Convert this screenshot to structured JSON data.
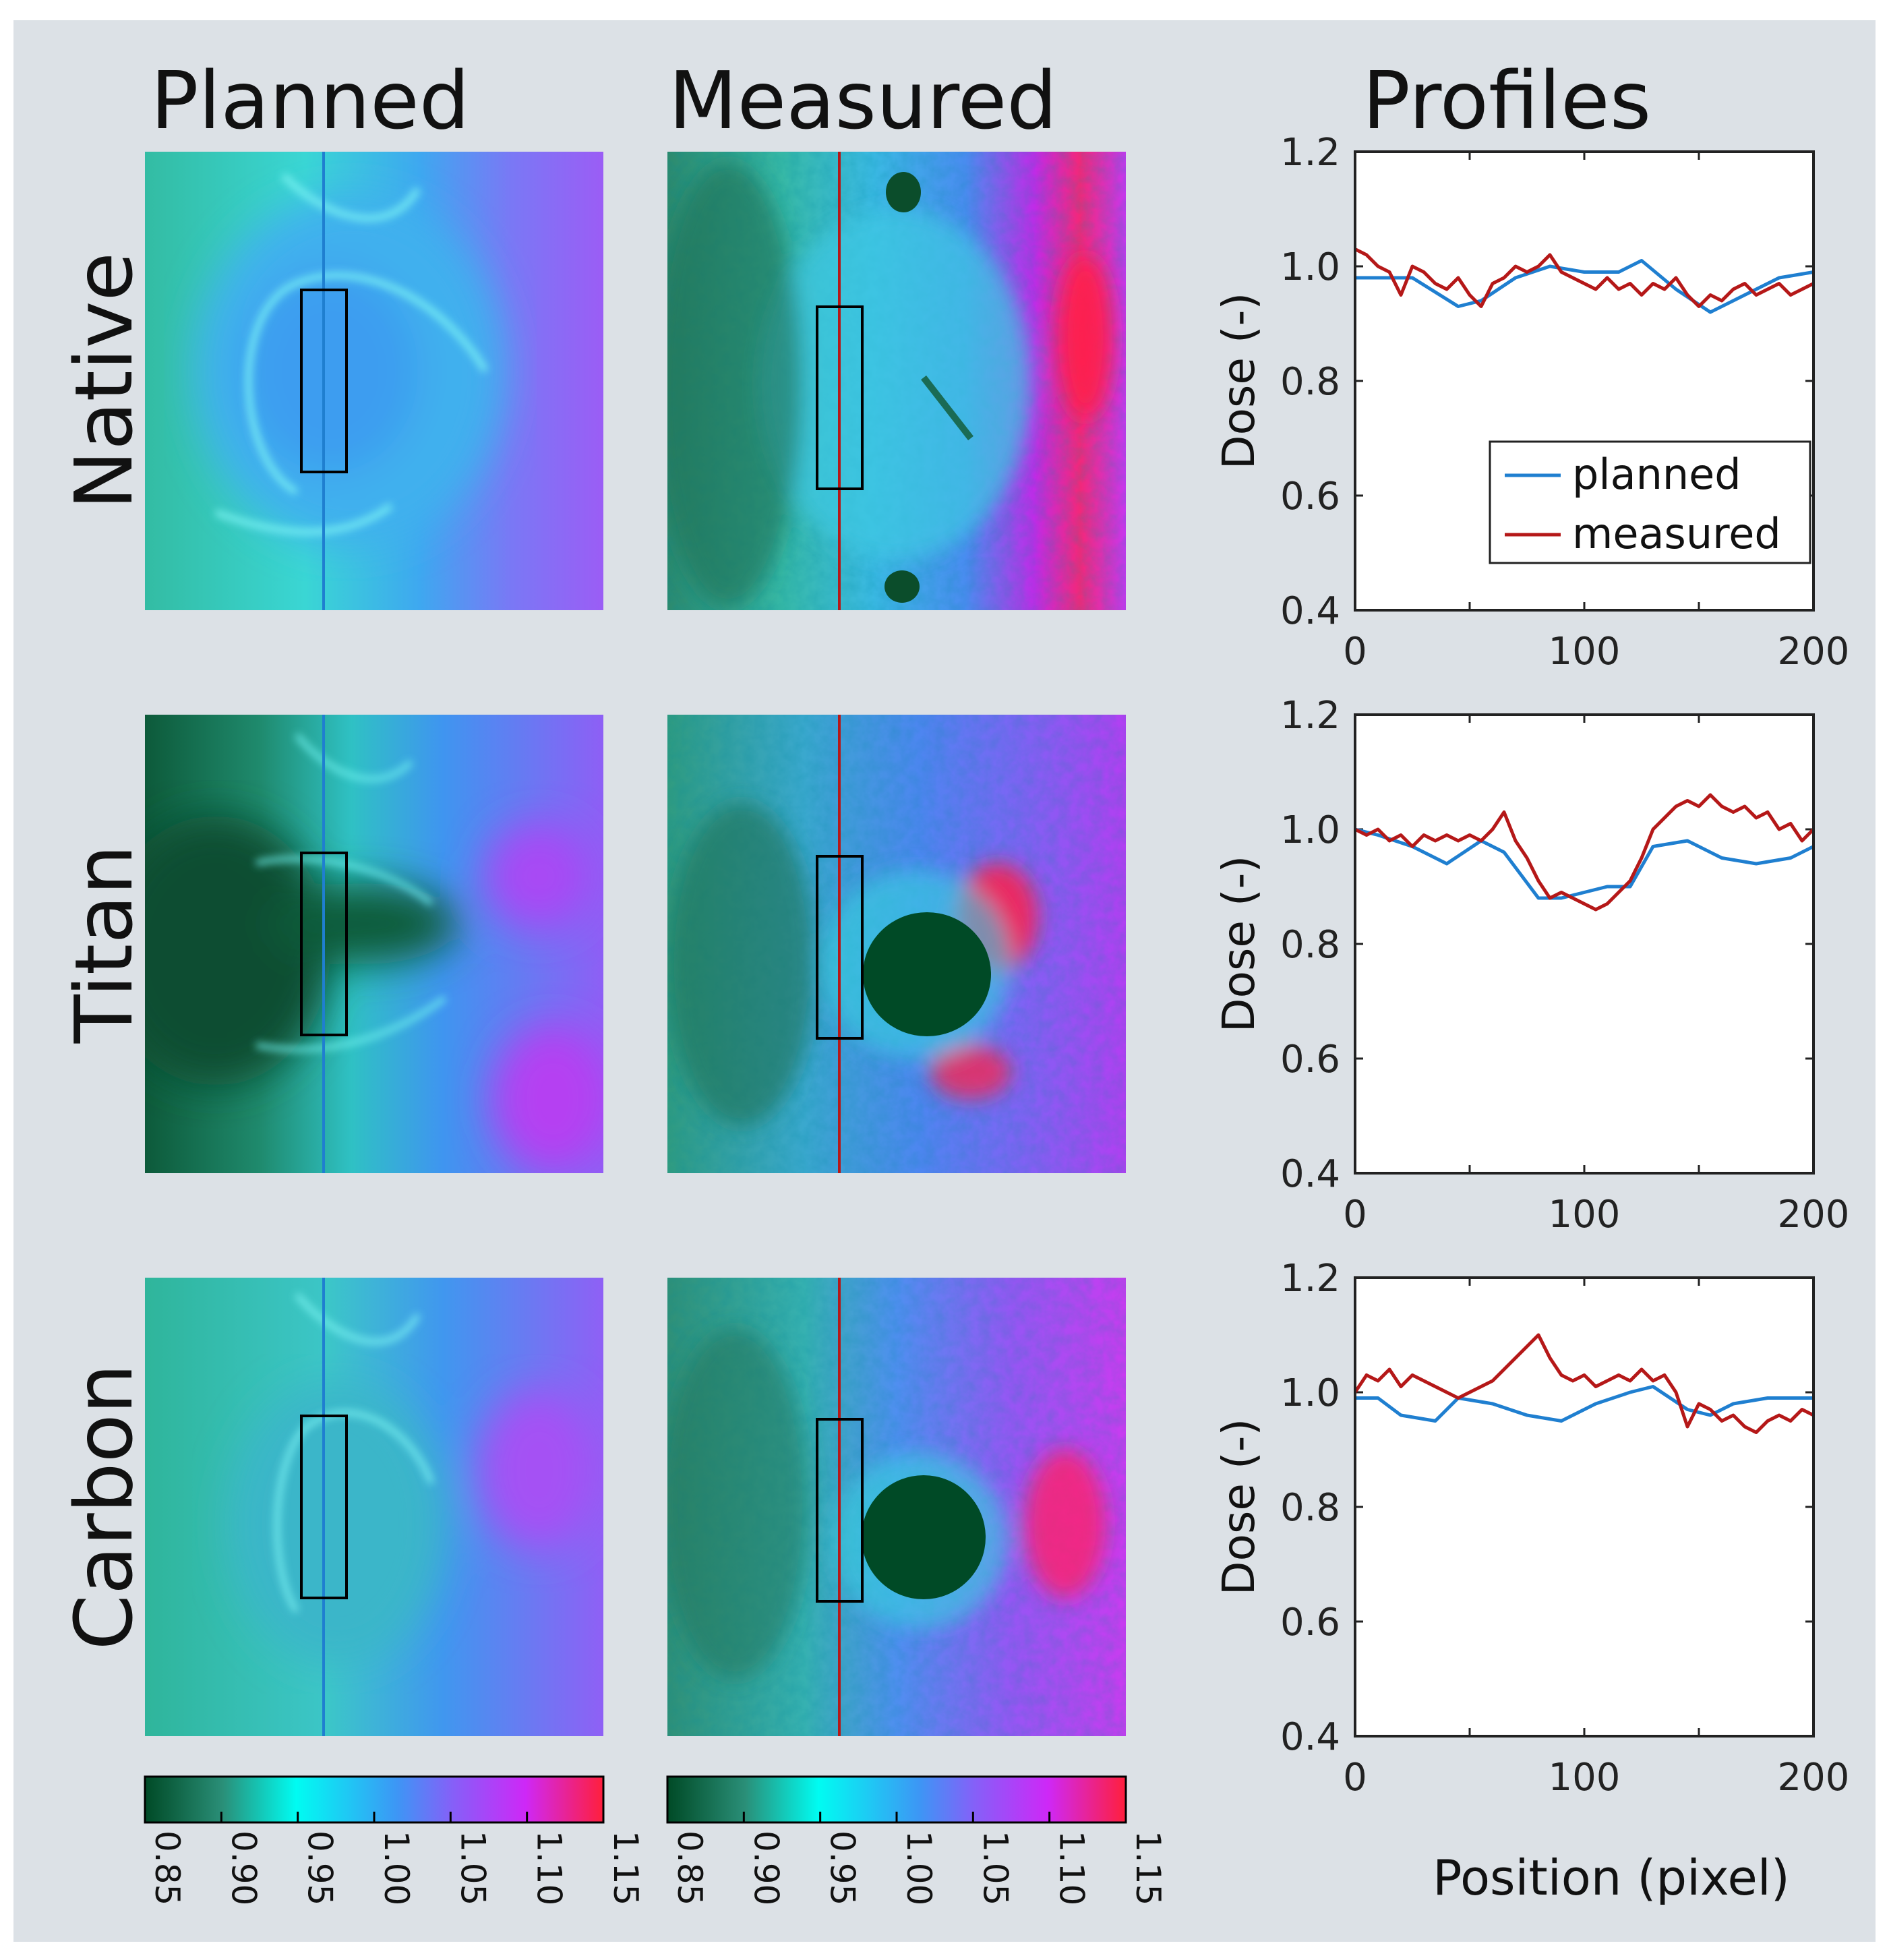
{
  "colors": {
    "background": "#dce1e6",
    "planned_line": "#1f7fd0",
    "measured_line": "#b51818",
    "colormap": [
      "#004a26",
      "#2fa791",
      "#00fcf2",
      "#3d96f5",
      "#8560f8",
      "#ce28f7",
      "#ff1f3c"
    ]
  },
  "column_headers": {
    "planned": "Planned",
    "measured": "Measured",
    "profiles": "Profiles"
  },
  "row_labels": [
    "Native",
    "Titan",
    "Carbon"
  ],
  "colorbars": {
    "planned": {
      "ticks": [
        "0.85",
        "0.90",
        "0.95",
        "1.00",
        "1.05",
        "1.10",
        "1.15"
      ]
    },
    "measured": {
      "ticks": [
        "0.85",
        "0.90",
        "0.95",
        "1.00",
        "1.05",
        "1.10",
        "1.15"
      ]
    }
  },
  "chart_data": [
    {
      "type": "line",
      "panel": "Native",
      "xlabel": "",
      "ylabel": "Dose (-)",
      "xlim": [
        0,
        200
      ],
      "ylim": [
        0.4,
        1.2
      ],
      "xticks": [
        "0",
        "100",
        "200"
      ],
      "yticks": [
        "0.4",
        "0.6",
        "0.8",
        "1.0",
        "1.2"
      ],
      "legend": {
        "position": "lower-right",
        "entries": [
          "planned",
          "measured"
        ]
      },
      "series": [
        {
          "name": "planned",
          "x": [
            0,
            10,
            25,
            45,
            55,
            70,
            85,
            100,
            115,
            125,
            140,
            155,
            170,
            185,
            200
          ],
          "values": [
            0.98,
            0.98,
            0.98,
            0.93,
            0.94,
            0.98,
            1.0,
            0.99,
            0.99,
            1.01,
            0.96,
            0.92,
            0.95,
            0.98,
            0.99
          ]
        },
        {
          "name": "measured",
          "x": [
            0,
            5,
            10,
            15,
            20,
            25,
            30,
            35,
            40,
            45,
            50,
            55,
            60,
            65,
            70,
            75,
            80,
            85,
            90,
            95,
            100,
            105,
            110,
            115,
            120,
            125,
            130,
            135,
            140,
            145,
            150,
            155,
            160,
            165,
            170,
            175,
            180,
            185,
            190,
            195,
            200
          ],
          "values": [
            1.03,
            1.02,
            1.0,
            0.99,
            0.95,
            1.0,
            0.99,
            0.97,
            0.96,
            0.98,
            0.95,
            0.93,
            0.97,
            0.98,
            1.0,
            0.99,
            1.0,
            1.02,
            0.99,
            0.98,
            0.97,
            0.96,
            0.98,
            0.96,
            0.97,
            0.95,
            0.97,
            0.96,
            0.98,
            0.95,
            0.93,
            0.95,
            0.94,
            0.96,
            0.97,
            0.95,
            0.96,
            0.97,
            0.95,
            0.96,
            0.97
          ]
        }
      ]
    },
    {
      "type": "line",
      "panel": "Titan",
      "xlabel": "",
      "ylabel": "Dose (-)",
      "xlim": [
        0,
        200
      ],
      "ylim": [
        0.4,
        1.2
      ],
      "xticks": [
        "0",
        "100",
        "200"
      ],
      "yticks": [
        "0.4",
        "0.6",
        "0.8",
        "1.0",
        "1.2"
      ],
      "series": [
        {
          "name": "planned",
          "x": [
            0,
            10,
            25,
            40,
            55,
            65,
            80,
            90,
            100,
            110,
            120,
            130,
            145,
            160,
            175,
            190,
            200
          ],
          "values": [
            1.0,
            0.99,
            0.97,
            0.94,
            0.98,
            0.96,
            0.88,
            0.88,
            0.89,
            0.9,
            0.9,
            0.97,
            0.98,
            0.95,
            0.94,
            0.95,
            0.97
          ]
        },
        {
          "name": "measured",
          "x": [
            0,
            5,
            10,
            15,
            20,
            25,
            30,
            35,
            40,
            45,
            50,
            55,
            60,
            65,
            70,
            75,
            80,
            85,
            90,
            95,
            100,
            105,
            110,
            115,
            120,
            125,
            130,
            135,
            140,
            145,
            150,
            155,
            160,
            165,
            170,
            175,
            180,
            185,
            190,
            195,
            200
          ],
          "values": [
            1.0,
            0.99,
            1.0,
            0.98,
            0.99,
            0.97,
            0.99,
            0.98,
            0.99,
            0.98,
            0.99,
            0.98,
            1.0,
            1.03,
            0.98,
            0.95,
            0.91,
            0.88,
            0.89,
            0.88,
            0.87,
            0.86,
            0.87,
            0.89,
            0.91,
            0.95,
            1.0,
            1.02,
            1.04,
            1.05,
            1.04,
            1.06,
            1.04,
            1.03,
            1.04,
            1.02,
            1.03,
            1.0,
            1.01,
            0.98,
            1.0
          ]
        }
      ]
    },
    {
      "type": "line",
      "panel": "Carbon",
      "xlabel": "Position (pixel)",
      "ylabel": "Dose (-)",
      "xlim": [
        0,
        200
      ],
      "ylim": [
        0.4,
        1.2
      ],
      "xticks": [
        "0",
        "100",
        "200"
      ],
      "yticks": [
        "0.4",
        "0.6",
        "0.8",
        "1.0",
        "1.2"
      ],
      "series": [
        {
          "name": "planned",
          "x": [
            0,
            10,
            20,
            35,
            45,
            60,
            75,
            90,
            105,
            120,
            130,
            145,
            155,
            165,
            180,
            190,
            200
          ],
          "values": [
            0.99,
            0.99,
            0.96,
            0.95,
            0.99,
            0.98,
            0.96,
            0.95,
            0.98,
            1.0,
            1.01,
            0.97,
            0.96,
            0.98,
            0.99,
            0.99,
            0.99
          ]
        },
        {
          "name": "measured",
          "x": [
            0,
            5,
            10,
            15,
            20,
            25,
            30,
            35,
            40,
            45,
            50,
            55,
            60,
            65,
            70,
            75,
            80,
            85,
            90,
            95,
            100,
            105,
            110,
            115,
            120,
            125,
            130,
            135,
            140,
            145,
            150,
            155,
            160,
            165,
            170,
            175,
            180,
            185,
            190,
            195,
            200
          ],
          "values": [
            1.0,
            1.03,
            1.02,
            1.04,
            1.01,
            1.03,
            1.02,
            1.01,
            1.0,
            0.99,
            1.0,
            1.01,
            1.02,
            1.04,
            1.06,
            1.08,
            1.1,
            1.06,
            1.03,
            1.02,
            1.03,
            1.01,
            1.02,
            1.03,
            1.02,
            1.04,
            1.02,
            1.03,
            1.0,
            0.94,
            0.98,
            0.97,
            0.95,
            0.96,
            0.94,
            0.93,
            0.95,
            0.96,
            0.95,
            0.97,
            0.96
          ]
        }
      ]
    }
  ]
}
